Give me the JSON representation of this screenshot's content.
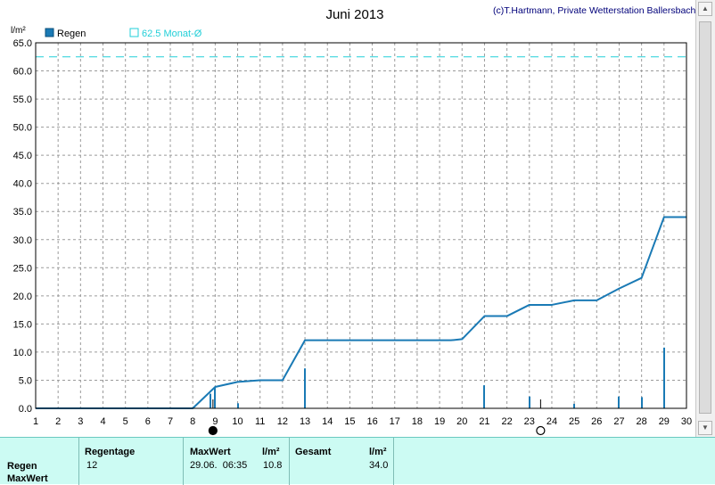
{
  "header": {
    "title": "Juni 2013",
    "copyright": "(c)T.Hartmann, Private Wetterstation Ballersbach"
  },
  "chart_data": {
    "type": "line",
    "title": "Juni 2013",
    "ylabel": "l/m²",
    "xlabel": "",
    "ylim": [
      0,
      65
    ],
    "xlim": [
      1,
      30
    ],
    "yticks": [
      "0.0",
      "5.0",
      "10.0",
      "15.0",
      "20.0",
      "25.0",
      "30.0",
      "35.0",
      "40.0",
      "45.0",
      "50.0",
      "55.0",
      "60.0",
      "65.0"
    ],
    "xticks": [
      "1",
      "2",
      "3",
      "4",
      "5",
      "6",
      "7",
      "8",
      "9",
      "10",
      "11",
      "12",
      "13",
      "14",
      "15",
      "16",
      "17",
      "18",
      "19",
      "20",
      "21",
      "22",
      "23",
      "24",
      "25",
      "26",
      "27",
      "28",
      "29",
      "30"
    ],
    "grid": true,
    "legend": [
      {
        "label": "Regen",
        "color": "#1a7ab5",
        "style": "filled-square"
      },
      {
        "label": "62.5 Monat-Ø",
        "color": "#22cfd8",
        "style": "outline-square"
      }
    ],
    "reference_line": {
      "name": "62.5 Monat-Ø",
      "value": 62.5,
      "color": "#22cfd8"
    },
    "series": [
      {
        "name": "Regen",
        "kind": "cumulative-line",
        "color": "#1a7ab5",
        "x": [
          1,
          8,
          9,
          10,
          11,
          12,
          13,
          14,
          15,
          16,
          17,
          18,
          19,
          19.5,
          20,
          21,
          22,
          23,
          24,
          25,
          26,
          27,
          28,
          29,
          30
        ],
        "y": [
          0,
          0,
          3.8,
          4.7,
          5.0,
          5.0,
          12.1,
          12.1,
          12.1,
          12.1,
          12.1,
          12.1,
          12.1,
          12.1,
          12.3,
          16.4,
          16.4,
          18.4,
          18.4,
          19.2,
          19.2,
          21.3,
          23.2,
          34.0,
          34.0
        ]
      },
      {
        "name": "Regen",
        "kind": "daily-bars",
        "color": "#1a7ab5",
        "x": [
          8.8,
          9,
          10,
          13,
          21,
          23,
          25,
          27,
          28,
          29
        ],
        "y": [
          2.6,
          3.8,
          0.9,
          7.1,
          4.1,
          2.1,
          0.8,
          2.1,
          2.0,
          10.8
        ]
      }
    ],
    "moon_phases": [
      {
        "day": 8.9,
        "phase": "new-moon"
      },
      {
        "day": 23.5,
        "phase": "full-moon"
      }
    ]
  },
  "stats": {
    "row_labels": [
      "Regen",
      "MaxWert"
    ],
    "headers": {
      "regentage": "Regentage",
      "maxwert": "MaxWert",
      "maxwert_unit": "l/m²",
      "gesamt": "Gesamt",
      "gesamt_unit": "l/m²"
    },
    "values": {
      "regentage": "12",
      "maxwert_datetime": "29.06.  06:35",
      "maxwert_value": "10.8",
      "gesamt_value": "34.0"
    }
  }
}
